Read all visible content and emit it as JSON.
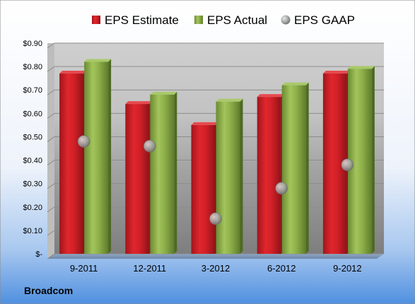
{
  "company": "Broadcom",
  "colors": {
    "estimate": "#d22027",
    "actual": "#8eb04a",
    "gaap": "#9a9a9a"
  },
  "chart_data": {
    "type": "bar",
    "categories": [
      "9-2011",
      "12-2011",
      "3-2012",
      "6-2012",
      "9-2012"
    ],
    "series": [
      {
        "name": "EPS Estimate",
        "kind": "bar",
        "values": [
          0.77,
          0.64,
          0.55,
          0.67,
          0.77
        ]
      },
      {
        "name": "EPS Actual",
        "kind": "bar",
        "values": [
          0.82,
          0.68,
          0.65,
          0.72,
          0.79
        ]
      },
      {
        "name": "EPS GAAP",
        "kind": "point",
        "values": [
          0.48,
          0.46,
          0.15,
          0.28,
          0.38
        ]
      }
    ],
    "yticks": [
      0,
      0.1,
      0.2,
      0.3,
      0.4,
      0.5,
      0.6,
      0.7,
      0.8,
      0.9
    ],
    "ytick_labels": [
      "$-",
      "$0.10",
      "$0.20",
      "$0.30",
      "$0.40",
      "$0.50",
      "$0.60",
      "$0.70",
      "$0.80",
      "$0.90"
    ],
    "ylim": [
      0,
      0.9
    ],
    "legend_position": "top",
    "grid": true
  }
}
